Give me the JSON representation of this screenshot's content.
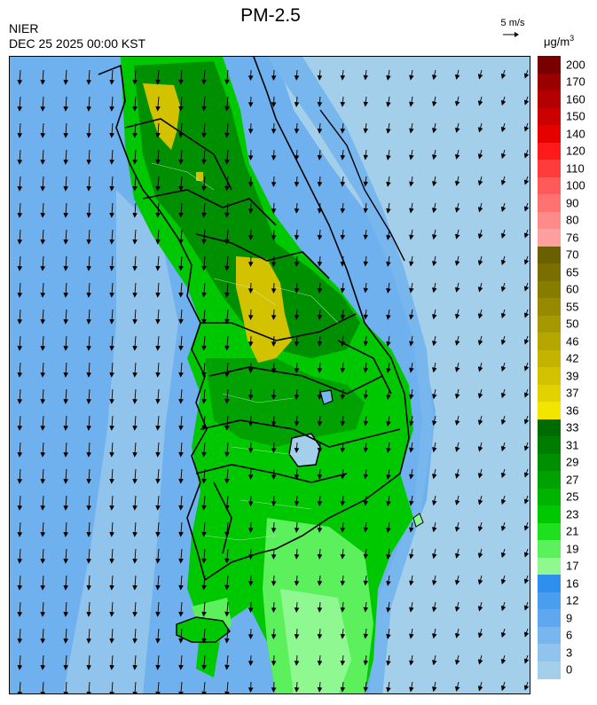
{
  "header": {
    "title": "PM-2.5",
    "agency": "NIER",
    "datetime": "DEC 25 2025 00:00 KST"
  },
  "wind_reference": {
    "label": "5 m/s",
    "arrow": "→"
  },
  "unit": {
    "base": "μg/m",
    "exponent": "3"
  },
  "legend": {
    "levels": [
      {
        "label": "200",
        "color": "#7a0000"
      },
      {
        "label": "170",
        "color": "#9a0000"
      },
      {
        "label": "160",
        "color": "#b30000"
      },
      {
        "label": "150",
        "color": "#cc0000"
      },
      {
        "label": "140",
        "color": "#e60000"
      },
      {
        "label": "120",
        "color": "#ff1a1a"
      },
      {
        "label": "110",
        "color": "#ff3c3c"
      },
      {
        "label": "100",
        "color": "#ff5a5a"
      },
      {
        "label": "90",
        "color": "#ff7272"
      },
      {
        "label": "80",
        "color": "#ff8a8a"
      },
      {
        "label": "76",
        "color": "#ff9f9f"
      },
      {
        "label": "70",
        "color": "#6b6000"
      },
      {
        "label": "65",
        "color": "#7a6e00"
      },
      {
        "label": "60",
        "color": "#887c00"
      },
      {
        "label": "55",
        "color": "#978a00"
      },
      {
        "label": "50",
        "color": "#a69800"
      },
      {
        "label": "46",
        "color": "#b5a600"
      },
      {
        "label": "42",
        "color": "#c4b400"
      },
      {
        "label": "39",
        "color": "#d3c200"
      },
      {
        "label": "37",
        "color": "#e2d200"
      },
      {
        "label": "36",
        "color": "#f2e600"
      },
      {
        "label": "33",
        "color": "#006b00"
      },
      {
        "label": "31",
        "color": "#007d00"
      },
      {
        "label": "29",
        "color": "#008f00"
      },
      {
        "label": "27",
        "color": "#00a100"
      },
      {
        "label": "25",
        "color": "#00b300"
      },
      {
        "label": "23",
        "color": "#00c800"
      },
      {
        "label": "21",
        "color": "#1ee01e"
      },
      {
        "label": "19",
        "color": "#5cf05c"
      },
      {
        "label": "17",
        "color": "#90f890"
      },
      {
        "label": "16",
        "color": "#2f8fef"
      },
      {
        "label": "12",
        "color": "#4a9ef0"
      },
      {
        "label": "9",
        "color": "#5fa8ef"
      },
      {
        "label": "6",
        "color": "#78b6ee"
      },
      {
        "label": "3",
        "color": "#90c4ec"
      },
      {
        "label": "0",
        "color": "#a3cfea"
      }
    ]
  },
  "map_colors": {
    "sea_background": "#6fb0ef",
    "sea_east": "#a3cfea",
    "land_green": "#00c800",
    "land_dark_green": "#008f00",
    "land_light_green": "#5cf05c",
    "hotspot_yellow": "#d3c200",
    "boundary": "#000000"
  }
}
